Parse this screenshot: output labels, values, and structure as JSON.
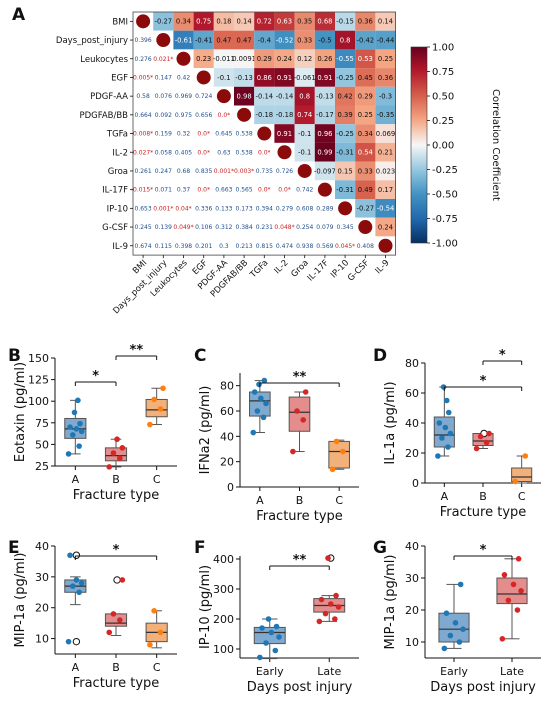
{
  "panels": [
    {
      "id": "A",
      "letter": "A"
    },
    {
      "id": "B",
      "letter": "B"
    },
    {
      "id": "C",
      "letter": "C"
    },
    {
      "id": "D",
      "letter": "D"
    },
    {
      "id": "E",
      "letter": "E"
    },
    {
      "id": "F",
      "letter": "F"
    },
    {
      "id": "G",
      "letter": "G"
    }
  ],
  "colors": {
    "A": "#3f7fb8",
    "B": "#de6a6a",
    "C": "#f2a35f",
    "box_A": "#7fa9cf",
    "box_B": "#e38d8d",
    "box_C": "#f2b07a",
    "dot_A": "#1f77b4",
    "dot_B": "#d62728",
    "dot_C": "#ff7f0e"
  },
  "chart_data": [
    {
      "panel": "A",
      "type": "heatmap",
      "variables": [
        "BMI",
        "Days_post_injury",
        "Leukocytes",
        "EGF",
        "PDGF-AA",
        "PDGFAB/BB",
        "TGFa",
        "IL-2",
        "Groa",
        "IL-17F",
        "IP-10",
        "G-CSF",
        "IL-9"
      ],
      "upper": [
        [
          null,
          -0.27,
          0.34,
          0.75,
          0.18,
          0.14,
          0.72,
          0.63,
          0.35,
          0.68,
          -0.15,
          0.36,
          0.14
        ],
        [
          null,
          null,
          -0.61,
          -0.41,
          0.47,
          0.47,
          -0.4,
          -0.52,
          0.33,
          -0.5,
          0.8,
          -0.42,
          -0.44
        ],
        [
          null,
          null,
          null,
          0.23,
          -0.011,
          0.0091,
          0.29,
          0.24,
          0.12,
          0.26,
          -0.55,
          0.53,
          0.25
        ],
        [
          null,
          null,
          null,
          null,
          -0.1,
          -0.13,
          0.86,
          0.91,
          -0.061,
          0.91,
          -0.25,
          0.45,
          0.36
        ],
        [
          null,
          null,
          null,
          null,
          null,
          0.98,
          -0.14,
          -0.14,
          0.8,
          -0.13,
          0.42,
          0.29,
          -0.3
        ],
        [
          null,
          null,
          null,
          null,
          null,
          null,
          -0.18,
          -0.18,
          0.74,
          -0.17,
          0.39,
          0.25,
          -0.35
        ],
        [
          null,
          null,
          null,
          null,
          null,
          null,
          null,
          0.91,
          -0.1,
          0.96,
          -0.25,
          0.34,
          0.069
        ],
        [
          null,
          null,
          null,
          null,
          null,
          null,
          null,
          null,
          -0.1,
          0.99,
          -0.31,
          0.54,
          0.21
        ],
        [
          null,
          null,
          null,
          null,
          null,
          null,
          null,
          null,
          null,
          -0.097,
          0.15,
          0.33,
          0.023
        ],
        [
          null,
          null,
          null,
          null,
          null,
          null,
          null,
          null,
          null,
          null,
          -0.31,
          0.49,
          0.17
        ],
        [
          null,
          null,
          null,
          null,
          null,
          null,
          null,
          null,
          null,
          null,
          null,
          -0.27,
          -0.54
        ],
        [
          null,
          null,
          null,
          null,
          null,
          null,
          null,
          null,
          null,
          null,
          null,
          null,
          0.24
        ],
        [
          null,
          null,
          null,
          null,
          null,
          null,
          null,
          null,
          null,
          null,
          null,
          null,
          null
        ]
      ],
      "lower": [
        [],
        [
          "0.396"
        ],
        [
          "0.276",
          "0.021*"
        ],
        [
          "0.005*",
          "0.147",
          "0.42"
        ],
        [
          "0.58",
          "0.076",
          "0.969",
          "0.724"
        ],
        [
          "0.664",
          "0.092",
          "0.975",
          "0.656",
          "0.0*"
        ],
        [
          "0.008*",
          "0.159",
          "0.32",
          "0.0*",
          "0.645",
          "0.538"
        ],
        [
          "0.027*",
          "0.058",
          "0.405",
          "0.0*",
          "0.63",
          "0.538",
          "0.0*"
        ],
        [
          "0.261",
          "0.247",
          "0.68",
          "0.835",
          "0.001*",
          "0.003*",
          "0.735",
          "0.726"
        ],
        [
          "0.015*",
          "0.071",
          "0.37",
          "0.0*",
          "0.663",
          "0.565",
          "0.0*",
          "0.0*",
          "0.742"
        ],
        [
          "0.653",
          "0.001*",
          "0.04*",
          "0.336",
          "0.133",
          "0.173",
          "0.394",
          "0.279",
          "0.608",
          "0.289"
        ],
        [
          "0.245",
          "0.139",
          "0.049*",
          "0.106",
          "0.312",
          "0.384",
          "0.231",
          "0.048*",
          "0.254",
          "0.079",
          "0.345"
        ],
        [
          "0.674",
          "0.115",
          "0.398",
          "0.201",
          "0.3",
          "0.213",
          "0.815",
          "0.474",
          "0.938",
          "0.569",
          "0.045*",
          "0.408"
        ]
      ],
      "colorbar": {
        "label": "Correlation Coefficient",
        "ticks": [
          "1.00",
          "0.75",
          "0.50",
          "0.25",
          "0.00",
          "-0.25",
          "-0.50",
          "-0.75",
          "-1.00"
        ],
        "range": [
          -1,
          1
        ]
      }
    },
    {
      "panel": "B",
      "type": "box",
      "xlabel": "Fracture type",
      "ylabel": "Eotaxin (pg/ml)",
      "ylim": [
        25,
        150
      ],
      "yticks": [
        25,
        50,
        75,
        100,
        125,
        150
      ],
      "categories": [
        "A",
        "B",
        "C"
      ],
      "groups": [
        {
          "name": "A",
          "q1": 57,
          "median": 68,
          "q3": 80,
          "whisker_low": 39,
          "whisker_high": 101,
          "points": [
            39,
            48,
            61,
            65,
            68,
            70,
            74,
            87,
            101
          ],
          "outliers": []
        },
        {
          "name": "B",
          "q1": 31,
          "median": 37,
          "q3": 46,
          "whisker_low": 24,
          "whisker_high": 56,
          "points": [
            24,
            34,
            40,
            46,
            56
          ],
          "outliers": []
        },
        {
          "name": "C",
          "q1": 82,
          "median": 90,
          "q3": 102,
          "whisker_low": 73,
          "whisker_high": 115,
          "points": [
            73,
            91,
            102,
            115
          ],
          "outliers": []
        }
      ],
      "significance": [
        {
          "from": "A",
          "to": "B",
          "label": "*",
          "level": 1
        },
        {
          "from": "B",
          "to": "C",
          "label": "**",
          "level": 2
        }
      ]
    },
    {
      "panel": "C",
      "type": "box",
      "xlabel": "Fracture type",
      "ylabel": "IFNa2 (pg/ml)",
      "ylim": [
        0,
        90
      ],
      "yticks": [
        0,
        20,
        40,
        60,
        80
      ],
      "categories": [
        "A",
        "B",
        "C"
      ],
      "groups": [
        {
          "name": "A",
          "q1": 56,
          "median": 68,
          "q3": 75,
          "whisker_low": 43,
          "whisker_high": 84,
          "points": [
            43,
            55,
            60,
            66,
            70,
            75,
            84,
            81
          ],
          "outliers": []
        },
        {
          "name": "B",
          "q1": 44,
          "median": 59,
          "q3": 71,
          "whisker_low": 28,
          "whisker_high": 75,
          "points": [
            28,
            53,
            60,
            75
          ],
          "outliers": []
        },
        {
          "name": "C",
          "q1": 15,
          "median": 28,
          "q3": 36,
          "whisker_low": 14,
          "whisker_high": 37,
          "points": [
            14,
            28,
            36
          ],
          "outliers": []
        }
      ],
      "significance": [
        {
          "from": "A",
          "to": "C",
          "label": "**",
          "level": 1
        }
      ]
    },
    {
      "panel": "D",
      "type": "box",
      "xlabel": "Fracture type",
      "ylabel": "IL-1a (pg/ml)",
      "ylim": [
        0,
        80
      ],
      "yticks": [
        0,
        20,
        40,
        60,
        80
      ],
      "categories": [
        "A",
        "B",
        "C"
      ],
      "groups": [
        {
          "name": "A",
          "q1": 24,
          "median": 32,
          "q3": 44,
          "whisker_low": 18,
          "whisker_high": 64,
          "points": [
            18,
            24,
            30,
            33,
            37,
            40,
            47,
            64,
            55
          ],
          "outliers": []
        },
        {
          "name": "B",
          "q1": 25,
          "median": 28,
          "q3": 33,
          "whisker_low": 23,
          "whisker_high": 33,
          "points": [
            23,
            27,
            31,
            33
          ],
          "outliers": [
            33
          ]
        },
        {
          "name": "C",
          "q1": 1,
          "median": 4,
          "q3": 10,
          "whisker_low": 0,
          "whisker_high": 18,
          "points": [
            1,
            18
          ],
          "outliers": []
        }
      ],
      "significance": [
        {
          "from": "A",
          "to": "C",
          "label": "*",
          "level": 1
        },
        {
          "from": "B",
          "to": "C",
          "label": "*",
          "level": 2
        }
      ]
    },
    {
      "panel": "E",
      "type": "box",
      "xlabel": "Fracture type",
      "ylabel": "MIP-1a (pg/ml)",
      "ylim": [
        5,
        40
      ],
      "yticks": [
        10,
        20,
        30,
        40
      ],
      "categories": [
        "A",
        "B",
        "C"
      ],
      "groups": [
        {
          "name": "A",
          "q1": 25,
          "median": 27,
          "q3": 29,
          "whisker_low": 21,
          "whisker_high": 30,
          "points": [
            9,
            25,
            27,
            28,
            29,
            37
          ],
          "outliers": [
            9,
            37
          ]
        },
        {
          "name": "B",
          "q1": 14,
          "median": 15,
          "q3": 18,
          "whisker_low": 11,
          "whisker_high": 18,
          "points": [
            12,
            16,
            18,
            29
          ],
          "outliers": [
            29
          ]
        },
        {
          "name": "C",
          "q1": 9,
          "median": 12,
          "q3": 15,
          "whisker_low": 7,
          "whisker_high": 19,
          "points": [
            8,
            12,
            19
          ],
          "outliers": []
        }
      ],
      "significance": [
        {
          "from": "A",
          "to": "C",
          "label": "*",
          "level": 1
        }
      ]
    },
    {
      "panel": "F",
      "type": "box",
      "xlabel": "Days post injury",
      "ylabel": "IP-10 (pg/ml)",
      "ylim": [
        70,
        410
      ],
      "yticks": [
        100,
        200,
        300,
        400
      ],
      "categories": [
        "Early",
        "Late"
      ],
      "groups": [
        {
          "name": "Early",
          "q1": 118,
          "median": 155,
          "q3": 172,
          "whisker_low": 68,
          "whisker_high": 200,
          "points": [
            72,
            95,
            120,
            140,
            155,
            170,
            175,
            200
          ],
          "outliers": []
        },
        {
          "name": "Late",
          "q1": 223,
          "median": 245,
          "q3": 268,
          "whisker_low": 192,
          "whisker_high": 278,
          "points": [
            192,
            200,
            218,
            240,
            250,
            265,
            278,
            403
          ],
          "outliers": [
            403
          ]
        }
      ],
      "significance": [
        {
          "from": "Early",
          "to": "Late",
          "label": "**",
          "level": 1
        }
      ]
    },
    {
      "panel": "G",
      "type": "box",
      "xlabel": "Days post injury",
      "ylabel": "MIP-1a (pg/ml)",
      "ylim": [
        5,
        40
      ],
      "yticks": [
        10,
        20,
        30,
        40
      ],
      "categories": [
        "Early",
        "Late"
      ],
      "groups": [
        {
          "name": "Early",
          "q1": 10,
          "median": 14,
          "q3": 19,
          "whisker_low": 8,
          "whisker_high": 28,
          "points": [
            8,
            10,
            12,
            14,
            16,
            19,
            28
          ],
          "outliers": []
        },
        {
          "name": "Late",
          "q1": 22,
          "median": 25,
          "q3": 30,
          "whisker_low": 11,
          "whisker_high": 36,
          "points": [
            11,
            20,
            23,
            26,
            28,
            31,
            36
          ],
          "outliers": []
        }
      ],
      "significance": [
        {
          "from": "Early",
          "to": "Late",
          "label": "*",
          "level": 1
        }
      ]
    }
  ]
}
